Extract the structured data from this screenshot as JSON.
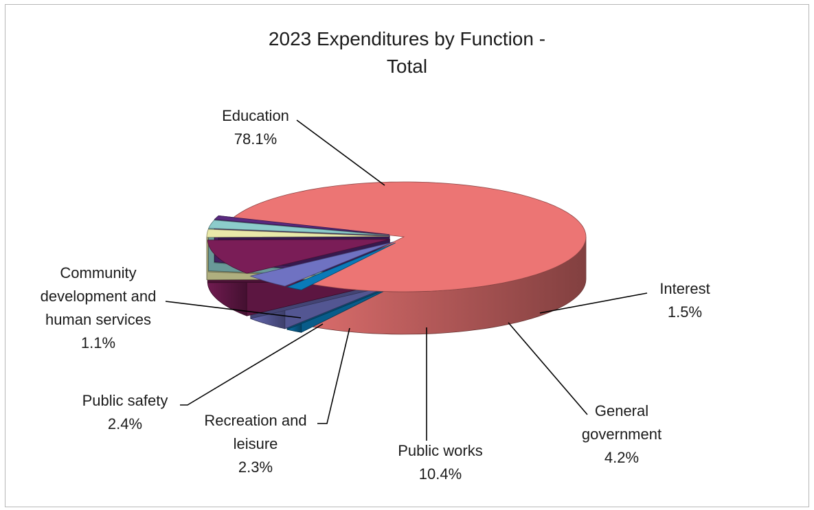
{
  "chart_data": {
    "type": "pie",
    "title_line1": "2023 Expenditures by Function -",
    "title_line2": "Total",
    "slices": [
      {
        "label": [
          "Education"
        ],
        "percent_label": "78.1%",
        "value": 78.1,
        "color": "#ec7574"
      },
      {
        "label": [
          "Interest"
        ],
        "percent_label": "1.5%",
        "value": 1.5,
        "color": "#0a7ab8"
      },
      {
        "label": [
          "General",
          "government"
        ],
        "percent_label": "4.2%",
        "value": 4.2,
        "color": "#6f72c2"
      },
      {
        "label": [
          "Public works"
        ],
        "percent_label": "10.4%",
        "value": 10.4,
        "color": "#7a1d57"
      },
      {
        "label": [
          "Recreation and",
          "leisure"
        ],
        "percent_label": "2.3%",
        "value": 2.3,
        "color": "#e9e9a9"
      },
      {
        "label": [
          "Public safety"
        ],
        "percent_label": "2.4%",
        "value": 2.4,
        "color": "#8ccccb"
      },
      {
        "label": [
          "Community",
          "development and",
          "human services"
        ],
        "percent_label": "1.1%",
        "value": 1.1,
        "color": "#5a2a80"
      }
    ]
  }
}
